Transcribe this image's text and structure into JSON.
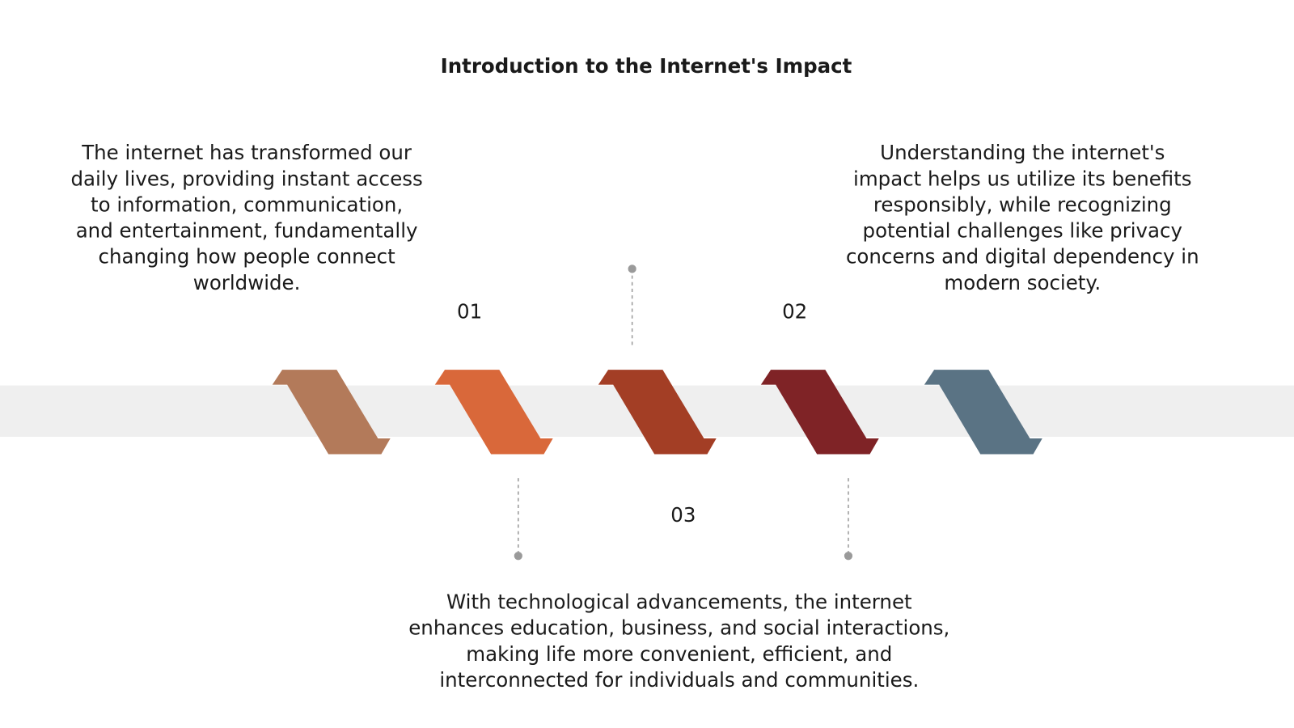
{
  "header": {
    "title": "Introduction to the Internet's Impact"
  },
  "steps": [
    {
      "number": "01",
      "text_lines": [
        "The internet has transformed our",
        "daily lives, providing instant access",
        "to information, communication,",
        "and entertainment, fundamentally",
        "changing how people connect",
        "worldwide."
      ]
    },
    {
      "number": "02",
      "text_lines": [
        "Understanding the internet's",
        "impact helps us utilize its benefits",
        "responsibly, while recognizing",
        "potential challenges like privacy",
        "concerns and digital dependency in",
        "modern society."
      ]
    },
    {
      "number": "03",
      "text_lines": [
        "With technological advancements, the internet",
        "enhances education, business, and social interactions,",
        "making life more convenient, efficient, and",
        "interconnected for individuals and communities."
      ]
    }
  ]
}
